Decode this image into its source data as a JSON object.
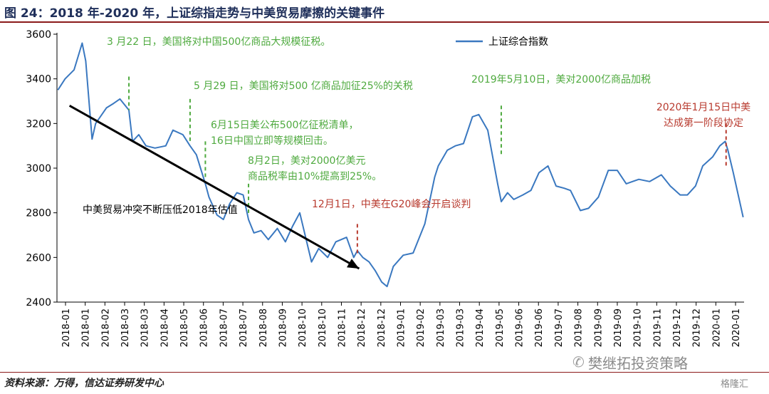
{
  "header": {
    "title": "图 24：2018 年-2020 年，上证综指走势与中美贸易摩擦的关键事件"
  },
  "footer": {
    "source": "资料来源：万得，信达证券研发中心",
    "watermark": "樊继拓投资策略",
    "logo": "格隆汇"
  },
  "colors": {
    "line": "#3a78c0",
    "annotation_green": "#4faa3f",
    "annotation_red": "#b83a2e",
    "arrow": "#000000",
    "title": "#1f2f5a",
    "rule": "#8b1a1a"
  },
  "icons": {
    "watermark": "wechat-icon"
  },
  "chart_data": {
    "type": "line",
    "ylim": [
      2400,
      3600
    ],
    "yticks": [
      2400,
      2600,
      2800,
      3000,
      3200,
      3400,
      3600
    ],
    "xlim": [
      "2018-01",
      "2020-01"
    ],
    "xticks": [
      "2018-01",
      "2018-01",
      "2018-02",
      "2018-03",
      "2018-03",
      "2018-04",
      "2018-05",
      "2018-06",
      "2018-07",
      "2018-07",
      "2018-08",
      "2018-09",
      "2018-10",
      "2018-10",
      "2018-11",
      "2018-12",
      "2018-12",
      "2019-01",
      "2019-02",
      "2019-03",
      "2019-03",
      "2019-04",
      "2019-05",
      "2019-06",
      "2019-06",
      "2019-07",
      "2019-08",
      "2019-09",
      "2019-09",
      "2019-10",
      "2019-11",
      "2019-12",
      "2019-12",
      "2020-01",
      "2020-01"
    ],
    "legend": {
      "position": "top-right",
      "label": "上证综合指数"
    },
    "series": [
      {
        "name": "上证综合指数",
        "x": [
          "2018-01-02",
          "2018-01-10",
          "2018-01-20",
          "2018-01-29",
          "2018-02-02",
          "2018-02-09",
          "2018-02-13",
          "2018-02-25",
          "2018-03-05",
          "2018-03-12",
          "2018-03-22",
          "2018-03-26",
          "2018-04-02",
          "2018-04-10",
          "2018-04-20",
          "2018-05-02",
          "2018-05-10",
          "2018-05-21",
          "2018-05-29",
          "2018-06-05",
          "2018-06-15",
          "2018-06-19",
          "2018-06-28",
          "2018-07-05",
          "2018-07-12",
          "2018-07-20",
          "2018-07-27",
          "2018-08-02",
          "2018-08-08",
          "2018-08-16",
          "2018-08-24",
          "2018-09-03",
          "2018-09-12",
          "2018-09-20",
          "2018-09-28",
          "2018-10-11",
          "2018-10-19",
          "2018-10-29",
          "2018-11-07",
          "2018-11-19",
          "2018-11-27",
          "2018-12-01",
          "2018-12-07",
          "2018-12-14",
          "2018-12-21",
          "2018-12-28",
          "2019-01-03",
          "2019-01-10",
          "2019-01-21",
          "2019-02-01",
          "2019-02-14",
          "2019-02-25",
          "2019-03-01",
          "2019-03-11",
          "2019-03-20",
          "2019-03-29",
          "2019-04-08",
          "2019-04-15",
          "2019-04-25",
          "2019-05-06",
          "2019-05-10",
          "2019-05-17",
          "2019-05-24",
          "2019-06-03",
          "2019-06-12",
          "2019-06-21",
          "2019-07-01",
          "2019-07-10",
          "2019-07-19",
          "2019-07-26",
          "2019-08-06",
          "2019-08-15",
          "2019-08-26",
          "2019-09-06",
          "2019-09-16",
          "2019-09-26",
          "2019-10-10",
          "2019-10-22",
          "2019-11-04",
          "2019-11-14",
          "2019-11-25",
          "2019-12-03",
          "2019-12-12",
          "2019-12-20",
          "2019-12-31",
          "2020-01-08",
          "2020-01-14",
          "2020-01-17",
          "2020-01-23",
          "2020-02-03"
        ],
        "values": [
          3350,
          3400,
          3440,
          3560,
          3480,
          3130,
          3200,
          3270,
          3290,
          3310,
          3260,
          3120,
          3150,
          3100,
          3090,
          3100,
          3170,
          3150,
          3100,
          3060,
          2930,
          2870,
          2790,
          2770,
          2840,
          2890,
          2880,
          2770,
          2710,
          2720,
          2680,
          2730,
          2670,
          2740,
          2800,
          2580,
          2640,
          2600,
          2670,
          2690,
          2600,
          2630,
          2600,
          2580,
          2540,
          2490,
          2470,
          2560,
          2610,
          2620,
          2750,
          2960,
          3010,
          3080,
          3100,
          3110,
          3230,
          3240,
          3170,
          2930,
          2850,
          2890,
          2860,
          2880,
          2900,
          2980,
          3010,
          2920,
          2910,
          2900,
          2810,
          2820,
          2870,
          2990,
          2990,
          2930,
          2950,
          2940,
          2970,
          2920,
          2880,
          2880,
          2920,
          3010,
          3050,
          3100,
          3120,
          3080,
          2980,
          2780
        ]
      }
    ],
    "annotations": [
      {
        "text_lines": [
          "3 月22 日，美国将对中国500亿商品大规模征税。"
        ],
        "color": "green",
        "marker_date": "2018-03-22",
        "marker_from": 3410,
        "marker_to": 3260
      },
      {
        "text_lines": [
          "5 月29 日，美国将对500 亿商品加征25%的关税"
        ],
        "color": "green",
        "marker_date": "2018-05-29",
        "marker_from": 3310,
        "marker_to": 3110
      },
      {
        "text_lines": [
          "6月15日美公布500亿征税清单，",
          "16日中国立即等规模回击。"
        ],
        "color": "green",
        "marker_date": "2018-06-15",
        "marker_from": 3120,
        "marker_to": 2960
      },
      {
        "text_lines": [
          "8月2日，美对2000亿美元",
          "商品税率由10%提高到25%。"
        ],
        "color": "green",
        "marker_date": "2018-08-02",
        "marker_from": 2930,
        "marker_to": 2790
      },
      {
        "text_lines": [
          "12月1日，中美在G20峰会开启谈判"
        ],
        "color": "red",
        "marker_date": "2018-12-01",
        "marker_from": 2750,
        "marker_to": 2610
      },
      {
        "text_lines": [
          "2019年5月10日，美对2000亿商品加税"
        ],
        "color": "green",
        "marker_date": "2019-05-10",
        "marker_from": 3280,
        "marker_to": 3060
      },
      {
        "text_lines": [
          "2020年1月15日中美",
          "达成第一阶段协定"
        ],
        "color": "red",
        "marker_date": "2020-01-15",
        "marker_from": 3200,
        "marker_to": 3000
      }
    ],
    "trend_label": "中美贸易冲突不断压低2018年估值",
    "trend_arrow": {
      "from": {
        "date": "2018-01-15",
        "value": 3280
      },
      "to": {
        "date": "2018-12-03",
        "value": 2550
      }
    }
  }
}
